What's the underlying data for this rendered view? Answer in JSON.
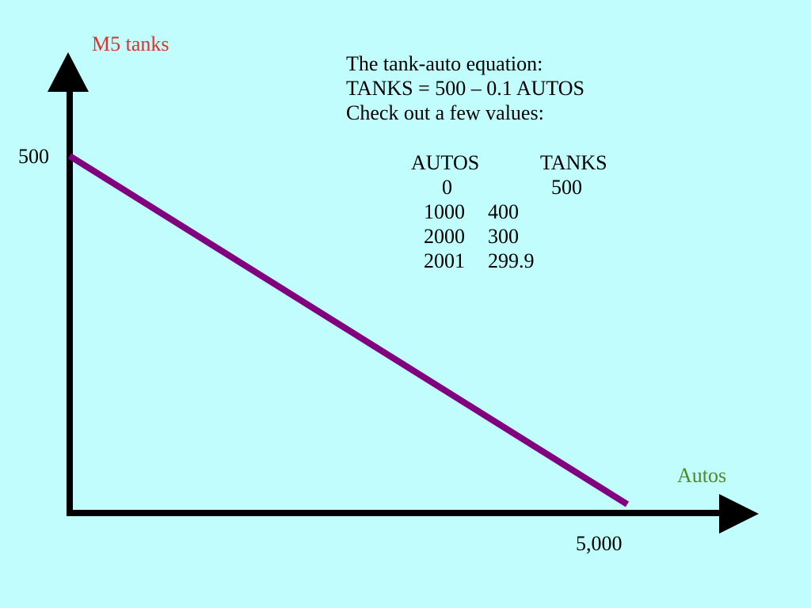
{
  "colors": {
    "background": "#c2fdfd",
    "axis": "#000000",
    "line": "#800080",
    "ylabel": "#e0302a",
    "xlabel": "#4e8a28",
    "text": "#000000"
  },
  "notes": {
    "line1": "The tank-auto equation:",
    "line2": "TANKS = 500 – 0.1 AUTOS",
    "line3": "Check out a few values:"
  },
  "table": {
    "headers": [
      "AUTOS",
      "TANKS"
    ],
    "rows": [
      [
        "0",
        "500"
      ],
      [
        "1000",
        "400"
      ],
      [
        "2000",
        "300"
      ],
      [
        "2001",
        "299.9"
      ]
    ]
  },
  "chart_data": {
    "type": "line",
    "title": "",
    "xlabel": "Autos",
    "ylabel": "M5 tanks",
    "xlim": [
      0,
      5000
    ],
    "ylim": [
      0,
      500
    ],
    "grid": false,
    "legend": "none",
    "x_tick_labels": [
      "5,000"
    ],
    "y_tick_labels": [
      "500"
    ],
    "series": [
      {
        "x": [
          0,
          5000
        ],
        "values": [
          500,
          0
        ]
      }
    ]
  }
}
